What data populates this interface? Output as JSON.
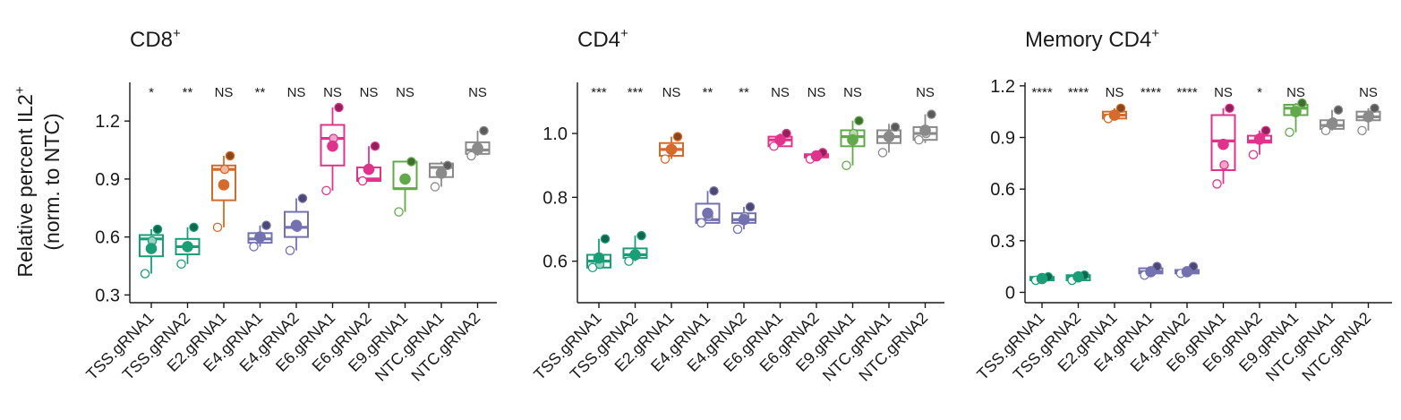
{
  "figure": {
    "ylabel_line1": "Relative percent IL2",
    "ylabel_sup": "+",
    "ylabel_line2": "(norm. to NTC)"
  },
  "colors": {
    "TSS": "#1a9e77",
    "E2": "#d56b2a",
    "E4": "#7371b0",
    "E6": "#e1338c",
    "E9": "#62a94b",
    "NTC": "#8a8a8a"
  },
  "chart_data": [
    {
      "type": "box",
      "title": "CD8",
      "title_sup": "+",
      "ylim": [
        0.26,
        1.4
      ],
      "yticks": [
        0.3,
        0.6,
        0.9,
        1.2
      ],
      "ytick_labels": [
        "0.3",
        "0.6",
        "0.9",
        "1.2"
      ],
      "categories": [
        "TSS.gRNA1",
        "TSS.gRNA2",
        "E2.gRNA1",
        "E4.gRNA1",
        "E4.gRNA2",
        "E6.gRNA1",
        "E6.gRNA2",
        "E9.gRNA1",
        "NTC.gRNA1",
        "NTC.gRNA2"
      ],
      "groups": [
        "TSS",
        "TSS",
        "E2",
        "E4",
        "E4",
        "E6",
        "E6",
        "E9",
        "NTC",
        "NTC"
      ],
      "significance": [
        "*",
        "**",
        "NS",
        "**",
        "NS",
        "NS",
        "NS",
        "NS",
        "",
        "NS"
      ],
      "boxes": [
        {
          "q1": 0.5,
          "median": 0.59,
          "q3": 0.61,
          "wlo": 0.41,
          "whi": 0.64
        },
        {
          "q1": 0.51,
          "median": 0.55,
          "q3": 0.59,
          "wlo": 0.46,
          "whi": 0.65
        },
        {
          "q1": 0.79,
          "median": 0.95,
          "q3": 0.97,
          "wlo": 0.65,
          "whi": 1.02
        },
        {
          "q1": 0.57,
          "median": 0.59,
          "q3": 0.62,
          "wlo": 0.55,
          "whi": 0.66
        },
        {
          "q1": 0.6,
          "median": 0.65,
          "q3": 0.73,
          "wlo": 0.53,
          "whi": 0.8
        },
        {
          "q1": 0.97,
          "median": 1.11,
          "q3": 1.18,
          "wlo": 0.84,
          "whi": 1.27
        },
        {
          "q1": 0.89,
          "median": 0.9,
          "q3": 0.96,
          "wlo": 0.89,
          "whi": 1.07
        },
        {
          "q1": 0.85,
          "median": 0.85,
          "q3": 0.99,
          "wlo": 0.73,
          "whi": 0.99
        },
        {
          "q1": 0.91,
          "median": 0.96,
          "q3": 0.98,
          "wlo": 0.86,
          "whi": 0.99
        },
        {
          "q1": 1.03,
          "median": 1.05,
          "q3": 1.09,
          "wlo": 1.02,
          "whi": 1.15
        }
      ],
      "points": [
        [
          0.41,
          0.58,
          0.64
        ],
        [
          0.46,
          0.55,
          0.65
        ],
        [
          0.65,
          0.95,
          1.02
        ],
        [
          0.55,
          0.6,
          0.66
        ],
        [
          0.53,
          0.65,
          0.8
        ],
        [
          0.84,
          1.11,
          1.27
        ],
        [
          0.89,
          0.95,
          1.07
        ],
        [
          0.73,
          0.9,
          0.99
        ],
        [
          0.86,
          0.93,
          0.97
        ],
        [
          1.02,
          1.05,
          1.15
        ]
      ],
      "means": [
        0.54,
        0.55,
        0.87,
        0.6,
        0.66,
        1.07,
        0.95,
        0.9,
        0.93,
        1.06
      ]
    },
    {
      "type": "box",
      "title": "CD4",
      "title_sup": "+",
      "ylim": [
        0.47,
        1.16
      ],
      "yticks": [
        0.6,
        0.8,
        1.0
      ],
      "ytick_labels": [
        "0.6",
        "0.8",
        "1.0"
      ],
      "categories": [
        "TSS.gRNA1",
        "TSS.gRNA2",
        "E2.gRNA1",
        "E4.gRNA1",
        "E4.gRNA2",
        "E6.gRNA1",
        "E6.gRNA2",
        "E9.gRNA1",
        "NTC.gRNA1",
        "NTC.gRNA2"
      ],
      "groups": [
        "TSS",
        "TSS",
        "E2",
        "E4",
        "E4",
        "E6",
        "E6",
        "E9",
        "NTC",
        "NTC"
      ],
      "significance": [
        "***",
        "***",
        "NS",
        "**",
        "**",
        "NS",
        "NS",
        "NS",
        "",
        "NS"
      ],
      "boxes": [
        {
          "q1": 0.58,
          "median": 0.6,
          "q3": 0.62,
          "wlo": 0.58,
          "whi": 0.67
        },
        {
          "q1": 0.61,
          "median": 0.62,
          "q3": 0.64,
          "wlo": 0.6,
          "whi": 0.68
        },
        {
          "q1": 0.93,
          "median": 0.95,
          "q3": 0.97,
          "wlo": 0.92,
          "whi": 0.99
        },
        {
          "q1": 0.72,
          "median": 0.73,
          "q3": 0.78,
          "wlo": 0.72,
          "whi": 0.82
        },
        {
          "q1": 0.72,
          "median": 0.73,
          "q3": 0.75,
          "wlo": 0.7,
          "whi": 0.77
        },
        {
          "q1": 0.96,
          "median": 0.98,
          "q3": 0.99,
          "wlo": 0.96,
          "whi": 1.0
        },
        {
          "q1": 0.925,
          "median": 0.93,
          "q3": 0.935,
          "wlo": 0.92,
          "whi": 0.94
        },
        {
          "q1": 0.96,
          "median": 0.99,
          "q3": 1.01,
          "wlo": 0.9,
          "whi": 1.04
        },
        {
          "q1": 0.97,
          "median": 0.99,
          "q3": 1.01,
          "wlo": 0.94,
          "whi": 1.03
        },
        {
          "q1": 0.98,
          "median": 1.0,
          "q3": 1.02,
          "wlo": 0.97,
          "whi": 1.06
        }
      ],
      "points": [
        [
          0.58,
          0.59,
          0.67
        ],
        [
          0.6,
          0.62,
          0.68
        ],
        [
          0.92,
          0.95,
          0.99
        ],
        [
          0.72,
          0.74,
          0.82
        ],
        [
          0.7,
          0.74,
          0.77
        ],
        [
          0.96,
          0.98,
          1.0
        ],
        [
          0.92,
          0.93,
          0.94
        ],
        [
          0.9,
          1.0,
          1.04
        ],
        [
          0.94,
          0.99,
          1.02
        ],
        [
          0.98,
          1.0,
          1.06
        ]
      ],
      "means": [
        0.61,
        0.62,
        0.95,
        0.75,
        0.73,
        0.98,
        0.93,
        0.98,
        0.99,
        1.01
      ]
    },
    {
      "type": "box",
      "title": "Memory CD4",
      "title_sup": "+",
      "ylim": [
        -0.06,
        1.22
      ],
      "yticks": [
        0,
        0.3,
        0.6,
        0.9,
        1.2
      ],
      "ytick_labels": [
        "0",
        "0.3",
        "0.6",
        "0.9",
        "1.2"
      ],
      "categories": [
        "TSS.gRNA1",
        "TSS.gRNA2",
        "E2.gRNA1",
        "E4.gRNA1",
        "E4.gRNA2",
        "E6.gRNA1",
        "E6.gRNA2",
        "E9.gRNA1",
        "NTC.gRNA1",
        "NTC.gRNA2"
      ],
      "groups": [
        "TSS",
        "TSS",
        "E2",
        "E4",
        "E4",
        "E6",
        "E6",
        "E9",
        "NTC",
        "NTC"
      ],
      "significance": [
        "****",
        "****",
        "NS",
        "****",
        "****",
        "NS",
        "*",
        "NS",
        "",
        "NS"
      ],
      "boxes": [
        {
          "q1": 0.07,
          "median": 0.08,
          "q3": 0.09,
          "wlo": 0.07,
          "whi": 0.09
        },
        {
          "q1": 0.07,
          "median": 0.09,
          "q3": 0.1,
          "wlo": 0.07,
          "whi": 0.1
        },
        {
          "q1": 1.01,
          "median": 1.03,
          "q3": 1.05,
          "wlo": 1.01,
          "whi": 1.07
        },
        {
          "q1": 0.11,
          "median": 0.12,
          "q3": 0.14,
          "wlo": 0.1,
          "whi": 0.15
        },
        {
          "q1": 0.11,
          "median": 0.12,
          "q3": 0.13,
          "wlo": 0.11,
          "whi": 0.15
        },
        {
          "q1": 0.71,
          "median": 0.88,
          "q3": 1.03,
          "wlo": 0.63,
          "whi": 1.07
        },
        {
          "q1": 0.87,
          "median": 0.88,
          "q3": 0.91,
          "wlo": 0.8,
          "whi": 0.94
        },
        {
          "q1": 1.03,
          "median": 1.07,
          "q3": 1.09,
          "wlo": 0.93,
          "whi": 1.1
        },
        {
          "q1": 0.95,
          "median": 0.97,
          "q3": 1.0,
          "wlo": 0.94,
          "whi": 1.06
        },
        {
          "q1": 1.0,
          "median": 1.02,
          "q3": 1.05,
          "wlo": 0.94,
          "whi": 1.07
        }
      ],
      "points": [
        [
          0.07,
          0.08,
          0.09
        ],
        [
          0.07,
          0.09,
          0.1
        ],
        [
          1.01,
          1.03,
          1.07
        ],
        [
          0.1,
          0.12,
          0.15
        ],
        [
          0.11,
          0.12,
          0.15
        ],
        [
          0.63,
          0.74,
          1.07
        ],
        [
          0.8,
          0.9,
          0.94
        ],
        [
          0.93,
          1.07,
          1.1
        ],
        [
          0.94,
          0.99,
          1.06
        ],
        [
          0.94,
          1.03,
          1.07
        ]
      ],
      "means": [
        0.08,
        0.09,
        1.03,
        0.12,
        0.12,
        0.86,
        0.89,
        1.05,
        0.98,
        1.02
      ]
    }
  ]
}
